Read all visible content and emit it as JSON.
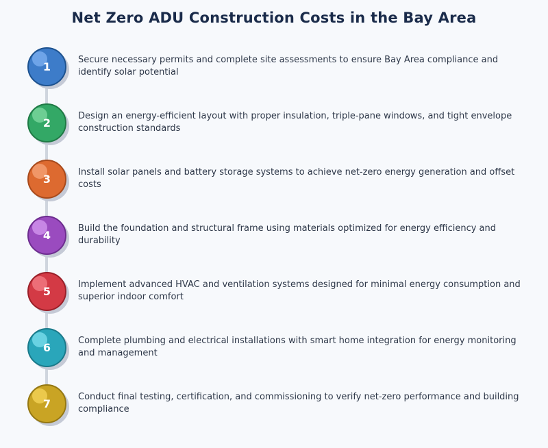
{
  "title": "Net Zero ADU Construction Costs in the Bay Area",
  "steps": [
    {
      "number": "1",
      "text": "Secure necessary permits and complete site assessments to ensure Bay Area compliance and identify solar potential",
      "color": "#3d7cc9",
      "border": "#1d528f",
      "highlight": "#7fb2f2"
    },
    {
      "number": "2",
      "text": "Design an energy-efficient layout with proper insulation, triple-pane windows, and tight envelope construction standards",
      "color": "#33a866",
      "border": "#1f7a45",
      "highlight": "#82dba3"
    },
    {
      "number": "3",
      "text": "Install solar panels and battery storage systems to achieve net-zero energy generation and offset costs",
      "color": "#dd6a30",
      "border": "#a84a1c",
      "highlight": "#f6a57a"
    },
    {
      "number": "4",
      "text": "Build the foundation and structural frame using materials optimized for energy efficiency and durability",
      "color": "#9a4bbf",
      "border": "#6d2d8f",
      "highlight": "#d69af2"
    },
    {
      "number": "5",
      "text": "Implement advanced HVAC and ventilation systems designed for minimal energy consumption and superior indoor comfort",
      "color": "#d33a45",
      "border": "#9a2029",
      "highlight": "#f48088"
    },
    {
      "number": "6",
      "text": "Complete plumbing and electrical installations with smart home integration for energy monitoring and management",
      "color": "#2aa6ba",
      "border": "#1a7a8a",
      "highlight": "#7fe0ef"
    },
    {
      "number": "7",
      "text": "Conduct final testing, certification, and commissioning to verify net-zero performance and building compliance",
      "color": "#c9a424",
      "border": "#957813",
      "highlight": "#f5d65a"
    }
  ]
}
